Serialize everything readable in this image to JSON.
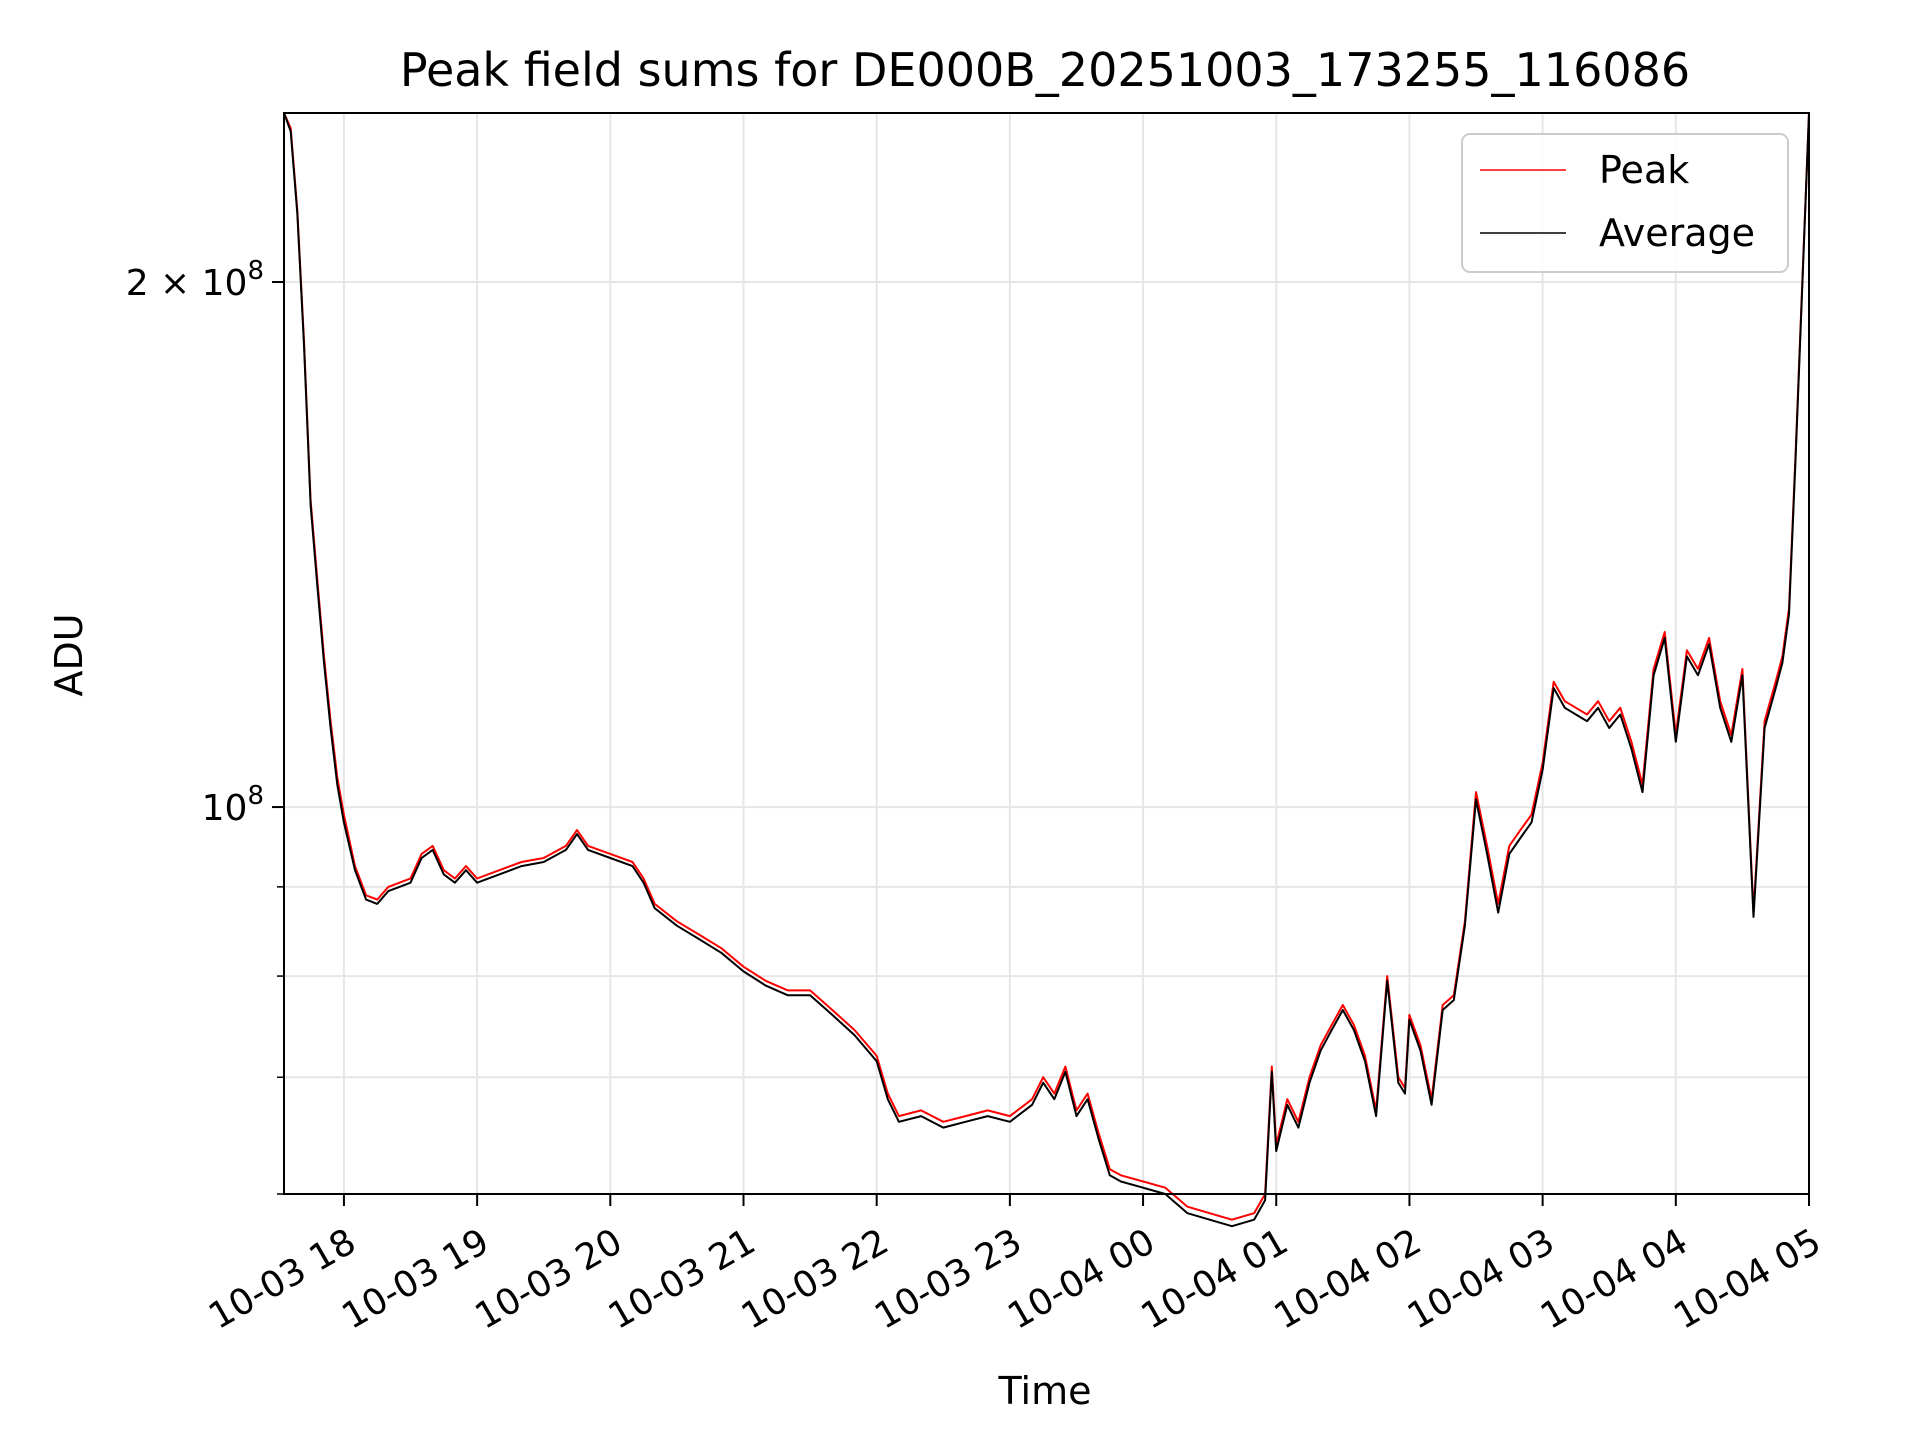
{
  "chart_data": {
    "type": "line",
    "title": "Peak field sums for DE000B_20251003_173255_116086",
    "xlabel": "Time",
    "ylabel": "ADU",
    "x_tick_labels": [
      "10-03 18",
      "10-03 19",
      "10-03 20",
      "10-03 21",
      "10-03 22",
      "10-03 23",
      "10-04 00",
      "10-04 01",
      "10-04 02",
      "10-04 03",
      "10-04 04",
      "10-04 05"
    ],
    "y_tick_labels": [
      "2 × 10^8",
      "10^8"
    ],
    "xlim": [
      "2025-10-03 17:33",
      "2025-10-04 05:00"
    ],
    "ylim": [
      60000000,
      250000000
    ],
    "yscale": "log",
    "grid": true,
    "legend_position": "top-right",
    "colors": {
      "Peak": "#ff0000",
      "Average": "#000000"
    },
    "series": [
      {
        "name": "Peak",
        "x": [
          "2025-10-03 17:33",
          "2025-10-03 17:36",
          "2025-10-03 17:39",
          "2025-10-03 17:42",
          "2025-10-03 17:45",
          "2025-10-03 17:48",
          "2025-10-03 17:51",
          "2025-10-03 17:54",
          "2025-10-03 17:57",
          "2025-10-03 18:00",
          "2025-10-03 18:05",
          "2025-10-03 18:10",
          "2025-10-03 18:15",
          "2025-10-03 18:20",
          "2025-10-03 18:25",
          "2025-10-03 18:30",
          "2025-10-03 18:35",
          "2025-10-03 18:40",
          "2025-10-03 18:45",
          "2025-10-03 18:50",
          "2025-10-03 18:55",
          "2025-10-03 19:00",
          "2025-10-03 19:10",
          "2025-10-03 19:20",
          "2025-10-03 19:30",
          "2025-10-03 19:40",
          "2025-10-03 19:45",
          "2025-10-03 19:50",
          "2025-10-03 20:00",
          "2025-10-03 20:10",
          "2025-10-03 20:15",
          "2025-10-03 20:20",
          "2025-10-03 20:30",
          "2025-10-03 20:40",
          "2025-10-03 20:50",
          "2025-10-03 21:00",
          "2025-10-03 21:10",
          "2025-10-03 21:20",
          "2025-10-03 21:30",
          "2025-10-03 21:40",
          "2025-10-03 21:50",
          "2025-10-03 22:00",
          "2025-10-03 22:05",
          "2025-10-03 22:10",
          "2025-10-03 22:20",
          "2025-10-03 22:30",
          "2025-10-03 22:40",
          "2025-10-03 22:50",
          "2025-10-03 23:00",
          "2025-10-03 23:10",
          "2025-10-03 23:15",
          "2025-10-03 23:20",
          "2025-10-03 23:25",
          "2025-10-03 23:30",
          "2025-10-03 23:35",
          "2025-10-03 23:40",
          "2025-10-03 23:45",
          "2025-10-03 23:50",
          "2025-10-04 00:00",
          "2025-10-04 00:10",
          "2025-10-04 00:20",
          "2025-10-04 00:30",
          "2025-10-04 00:40",
          "2025-10-04 00:50",
          "2025-10-04 00:55",
          "2025-10-04 00:58",
          "2025-10-04 01:00",
          "2025-10-04 01:05",
          "2025-10-04 01:10",
          "2025-10-04 01:15",
          "2025-10-04 01:20",
          "2025-10-04 01:25",
          "2025-10-04 01:30",
          "2025-10-04 01:35",
          "2025-10-04 01:40",
          "2025-10-04 01:45",
          "2025-10-04 01:50",
          "2025-10-04 01:55",
          "2025-10-04 01:58",
          "2025-10-04 02:00",
          "2025-10-04 02:05",
          "2025-10-04 02:10",
          "2025-10-04 02:15",
          "2025-10-04 02:20",
          "2025-10-04 02:25",
          "2025-10-04 02:30",
          "2025-10-04 02:35",
          "2025-10-04 02:40",
          "2025-10-04 02:45",
          "2025-10-04 02:50",
          "2025-10-04 02:55",
          "2025-10-04 03:00",
          "2025-10-04 03:05",
          "2025-10-04 03:10",
          "2025-10-04 03:15",
          "2025-10-04 03:20",
          "2025-10-04 03:25",
          "2025-10-04 03:30",
          "2025-10-04 03:35",
          "2025-10-04 03:40",
          "2025-10-04 03:45",
          "2025-10-04 03:50",
          "2025-10-04 03:55",
          "2025-10-04 04:00",
          "2025-10-04 04:05",
          "2025-10-04 04:10",
          "2025-10-04 04:15",
          "2025-10-04 04:20",
          "2025-10-04 04:25",
          "2025-10-04 04:30",
          "2025-10-04 04:35",
          "2025-10-04 04:40",
          "2025-10-04 04:45",
          "2025-10-04 04:48",
          "2025-10-04 04:51",
          "2025-10-04 04:54",
          "2025-10-04 04:57",
          "2025-10-04 05:00"
        ],
        "values": [
          250000000,
          245000000,
          220000000,
          185000000,
          150000000,
          135000000,
          122000000,
          112000000,
          104000000,
          99000000,
          92500000,
          89000000,
          88500000,
          90000000,
          90500000,
          91000000,
          94000000,
          95000000,
          92000000,
          91000000,
          92500000,
          91000000,
          92000000,
          93000000,
          93500000,
          95000000,
          97000000,
          95000000,
          94000000,
          93000000,
          91000000,
          88000000,
          86000000,
          84500000,
          83000000,
          81000000,
          79500000,
          78500000,
          78500000,
          76500000,
          74500000,
          72000000,
          68500000,
          66500000,
          67000000,
          66000000,
          66500000,
          67000000,
          66500000,
          68000000,
          70000000,
          68500000,
          71000000,
          67000000,
          68500000,
          65000000,
          62000000,
          61500000,
          61000000,
          60500000,
          59000000,
          58500000,
          58000000,
          58500000,
          60000000,
          71000000,
          64000000,
          68000000,
          66000000,
          70000000,
          73000000,
          75000000,
          77000000,
          75000000,
          72000000,
          67000000,
          80000000,
          70000000,
          69000000,
          76000000,
          73000000,
          68000000,
          77000000,
          78000000,
          86000000,
          102000000,
          95000000,
          88000000,
          95000000,
          97000000,
          99000000,
          106000000,
          118000000,
          115000000,
          114000000,
          113000000,
          115000000,
          112000000,
          114000000,
          109000000,
          103000000,
          120000000,
          126000000,
          110000000,
          123000000,
          120000000,
          125000000,
          115000000,
          110000000,
          120000000,
          87000000,
          112000000,
          118000000,
          122000000,
          130000000,
          160000000,
          200000000,
          250000000
        ]
      },
      {
        "name": "Average",
        "x": [
          "2025-10-03 17:33",
          "2025-10-03 17:36",
          "2025-10-03 17:39",
          "2025-10-03 17:42",
          "2025-10-03 17:45",
          "2025-10-03 17:48",
          "2025-10-03 17:51",
          "2025-10-03 17:54",
          "2025-10-03 17:57",
          "2025-10-03 18:00",
          "2025-10-03 18:05",
          "2025-10-03 18:10",
          "2025-10-03 18:15",
          "2025-10-03 18:20",
          "2025-10-03 18:25",
          "2025-10-03 18:30",
          "2025-10-03 18:35",
          "2025-10-03 18:40",
          "2025-10-03 18:45",
          "2025-10-03 18:50",
          "2025-10-03 18:55",
          "2025-10-03 19:00",
          "2025-10-03 19:10",
          "2025-10-03 19:20",
          "2025-10-03 19:30",
          "2025-10-03 19:40",
          "2025-10-03 19:45",
          "2025-10-03 19:50",
          "2025-10-03 20:00",
          "2025-10-03 20:10",
          "2025-10-03 20:15",
          "2025-10-03 20:20",
          "2025-10-03 20:30",
          "2025-10-03 20:40",
          "2025-10-03 20:50",
          "2025-10-03 21:00",
          "2025-10-03 21:10",
          "2025-10-03 21:20",
          "2025-10-03 21:30",
          "2025-10-03 21:40",
          "2025-10-03 21:50",
          "2025-10-03 22:00",
          "2025-10-03 22:05",
          "2025-10-03 22:10",
          "2025-10-03 22:20",
          "2025-10-03 22:30",
          "2025-10-03 22:40",
          "2025-10-03 22:50",
          "2025-10-03 23:00",
          "2025-10-03 23:10",
          "2025-10-03 23:15",
          "2025-10-03 23:20",
          "2025-10-03 23:25",
          "2025-10-03 23:30",
          "2025-10-03 23:35",
          "2025-10-03 23:40",
          "2025-10-03 23:45",
          "2025-10-03 23:50",
          "2025-10-04 00:00",
          "2025-10-04 00:10",
          "2025-10-04 00:20",
          "2025-10-04 00:30",
          "2025-10-04 00:40",
          "2025-10-04 00:50",
          "2025-10-04 00:55",
          "2025-10-04 00:58",
          "2025-10-04 01:00",
          "2025-10-04 01:05",
          "2025-10-04 01:10",
          "2025-10-04 01:15",
          "2025-10-04 01:20",
          "2025-10-04 01:25",
          "2025-10-04 01:30",
          "2025-10-04 01:35",
          "2025-10-04 01:40",
          "2025-10-04 01:45",
          "2025-10-04 01:50",
          "2025-10-04 01:55",
          "2025-10-04 01:58",
          "2025-10-04 02:00",
          "2025-10-04 02:05",
          "2025-10-04 02:10",
          "2025-10-04 02:15",
          "2025-10-04 02:20",
          "2025-10-04 02:25",
          "2025-10-04 02:30",
          "2025-10-04 02:35",
          "2025-10-04 02:40",
          "2025-10-04 02:45",
          "2025-10-04 02:50",
          "2025-10-04 02:55",
          "2025-10-04 03:00",
          "2025-10-04 03:05",
          "2025-10-04 03:10",
          "2025-10-04 03:15",
          "2025-10-04 03:20",
          "2025-10-04 03:25",
          "2025-10-04 03:30",
          "2025-10-04 03:35",
          "2025-10-04 03:40",
          "2025-10-04 03:45",
          "2025-10-04 03:50",
          "2025-10-04 03:55",
          "2025-10-04 04:00",
          "2025-10-04 04:05",
          "2025-10-04 04:10",
          "2025-10-04 04:15",
          "2025-10-04 04:20",
          "2025-10-04 04:25",
          "2025-10-04 04:30",
          "2025-10-04 04:35",
          "2025-10-04 04:40",
          "2025-10-04 04:45",
          "2025-10-04 04:48",
          "2025-10-04 04:51",
          "2025-10-04 04:54",
          "2025-10-04 04:57",
          "2025-10-04 05:00"
        ],
        "values": [
          250000000,
          244000000,
          219000000,
          184000000,
          149000000,
          134000000,
          121000000,
          111000000,
          103000000,
          98000000,
          92000000,
          88500000,
          88000000,
          89500000,
          90000000,
          90500000,
          93500000,
          94500000,
          91500000,
          90500000,
          92000000,
          90500000,
          91500000,
          92500000,
          93000000,
          94500000,
          96500000,
          94500000,
          93500000,
          92500000,
          90500000,
          87500000,
          85500000,
          84000000,
          82500000,
          80500000,
          79000000,
          78000000,
          78000000,
          76000000,
          74000000,
          71500000,
          68000000,
          66000000,
          66500000,
          65500000,
          66000000,
          66500000,
          66000000,
          67500000,
          69500000,
          68000000,
          70500000,
          66500000,
          68000000,
          64500000,
          61500000,
          61000000,
          60500000,
          60000000,
          58500000,
          58000000,
          57500000,
          58000000,
          59500000,
          70500000,
          63500000,
          67500000,
          65500000,
          69500000,
          72500000,
          74500000,
          76500000,
          74500000,
          71500000,
          66500000,
          79500000,
          69500000,
          68500000,
          75500000,
          72500000,
          67500000,
          76500000,
          77500000,
          85500000,
          101000000,
          94000000,
          87000000,
          94000000,
          96000000,
          98000000,
          105000000,
          117000000,
          114000000,
          113000000,
          112000000,
          114000000,
          111000000,
          113000000,
          108000000,
          102000000,
          119000000,
          125000000,
          109000000,
          122000000,
          119000000,
          124000000,
          114000000,
          109000000,
          119000000,
          86500000,
          111000000,
          117000000,
          121000000,
          129000000,
          159000000,
          199000000,
          250000000
        ]
      }
    ]
  }
}
